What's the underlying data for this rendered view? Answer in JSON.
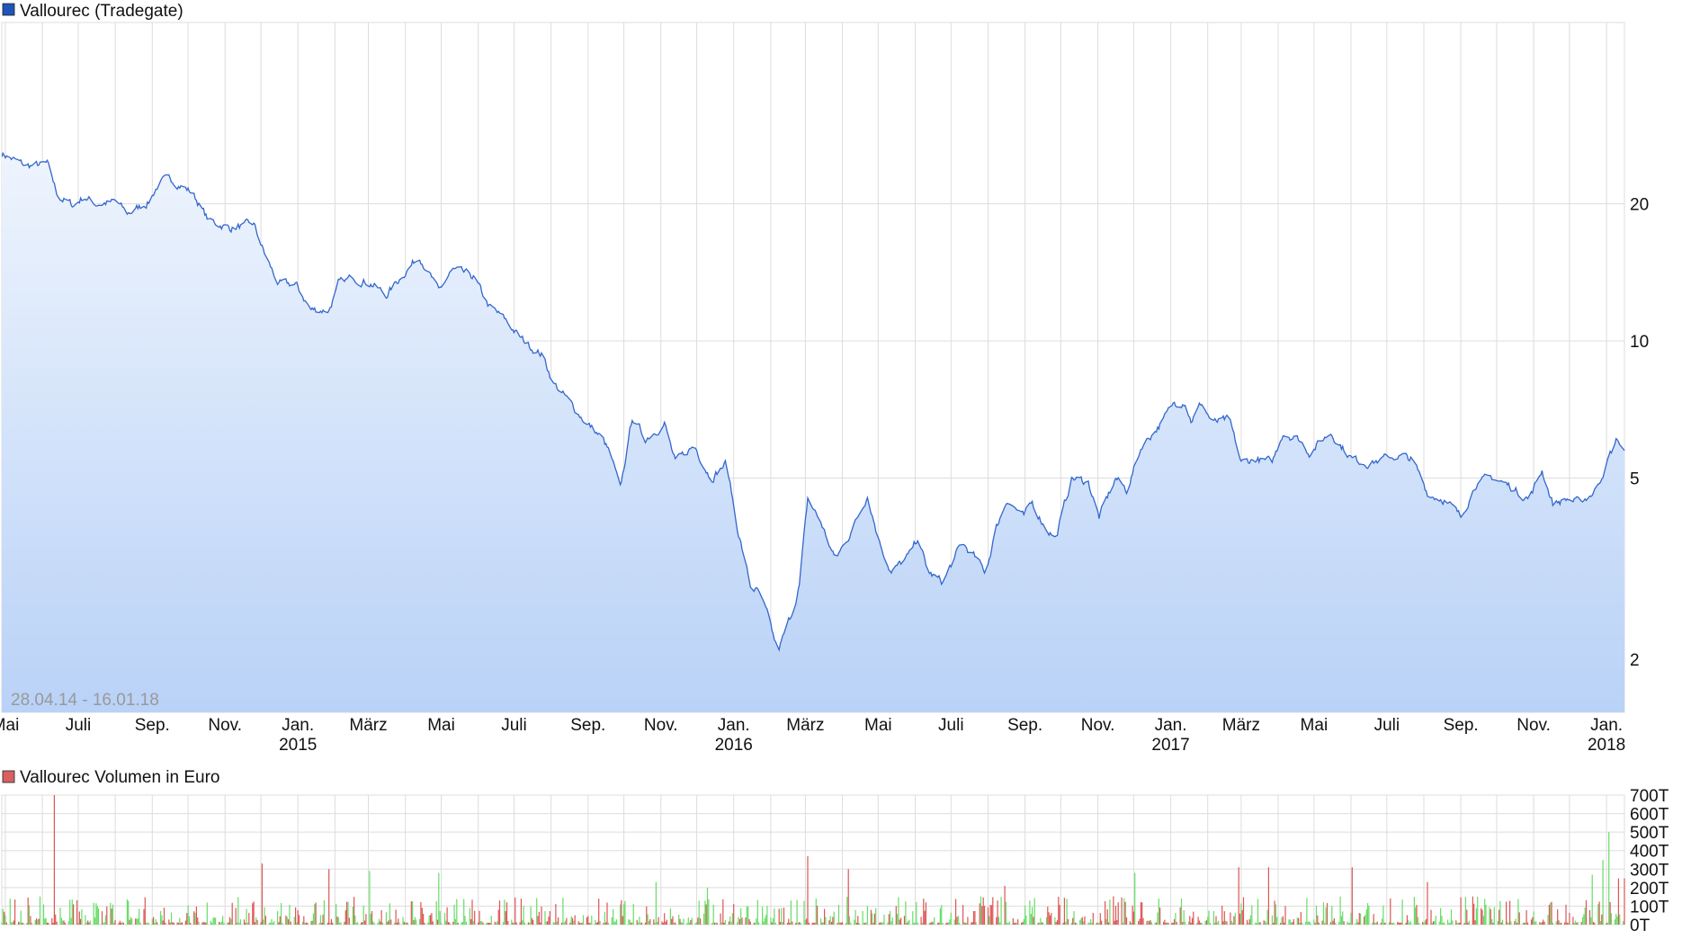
{
  "chart_data": [
    {
      "type": "area",
      "title": "Vallourec (Tradegate)",
      "legend_color": "#1f55b8",
      "line_color": "#3366cc",
      "fill_top_color": "#eef4fd",
      "fill_bottom_color": "#b9d2f7",
      "y_scale": "log",
      "ylim": [
        1.53,
        50
      ],
      "y_ticks": [
        2,
        5,
        10,
        20
      ],
      "y_tick_labels": [
        "2",
        "5",
        "10",
        "20"
      ],
      "grid": true,
      "date_range_label": "28.04.14 - 16.01.18",
      "x_range": [
        "2014-04-28",
        "2018-01-16"
      ],
      "x_ticks": [
        {
          "date": "2014-05-01",
          "label": "Mai",
          "year": ""
        },
        {
          "date": "2014-07-01",
          "label": "Juli",
          "year": ""
        },
        {
          "date": "2014-09-01",
          "label": "Sep.",
          "year": ""
        },
        {
          "date": "2014-11-01",
          "label": "Nov.",
          "year": ""
        },
        {
          "date": "2015-01-01",
          "label": "Jan.",
          "year": "2015"
        },
        {
          "date": "2015-03-01",
          "label": "März",
          "year": ""
        },
        {
          "date": "2015-05-01",
          "label": "Mai",
          "year": ""
        },
        {
          "date": "2015-07-01",
          "label": "Juli",
          "year": ""
        },
        {
          "date": "2015-09-01",
          "label": "Sep.",
          "year": ""
        },
        {
          "date": "2015-11-01",
          "label": "Nov.",
          "year": ""
        },
        {
          "date": "2016-01-01",
          "label": "Jan.",
          "year": "2016"
        },
        {
          "date": "2016-03-01",
          "label": "März",
          "year": ""
        },
        {
          "date": "2016-05-01",
          "label": "Mai",
          "year": ""
        },
        {
          "date": "2016-07-01",
          "label": "Juli",
          "year": ""
        },
        {
          "date": "2016-09-01",
          "label": "Sep.",
          "year": ""
        },
        {
          "date": "2016-11-01",
          "label": "Nov.",
          "year": ""
        },
        {
          "date": "2017-01-01",
          "label": "Jan.",
          "year": "2017"
        },
        {
          "date": "2017-03-01",
          "label": "März",
          "year": ""
        },
        {
          "date": "2017-05-01",
          "label": "Mai",
          "year": ""
        },
        {
          "date": "2017-07-01",
          "label": "Juli",
          "year": ""
        },
        {
          "date": "2017-09-01",
          "label": "Sep.",
          "year": ""
        },
        {
          "date": "2017-11-01",
          "label": "Nov.",
          "year": ""
        },
        {
          "date": "2018-01-01",
          "label": "Jan.",
          "year": "2018"
        }
      ],
      "points": [
        [
          "2014-04-28",
          25.8
        ],
        [
          "2014-05-18",
          24.2
        ],
        [
          "2014-06-05",
          24.4
        ],
        [
          "2014-06-14",
          20.8
        ],
        [
          "2014-06-27",
          19.8
        ],
        [
          "2014-07-06",
          20.8
        ],
        [
          "2014-07-15",
          20.0
        ],
        [
          "2014-08-02",
          20.2
        ],
        [
          "2014-08-11",
          19.0
        ],
        [
          "2014-08-29",
          20.2
        ],
        [
          "2014-09-07",
          22.3
        ],
        [
          "2014-09-18",
          22.6
        ],
        [
          "2014-10-05",
          21.1
        ],
        [
          "2014-10-18",
          18.4
        ],
        [
          "2014-11-05",
          17.7
        ],
        [
          "2014-11-25",
          18.0
        ],
        [
          "2014-12-05",
          15.3
        ],
        [
          "2014-12-16",
          13.3
        ],
        [
          "2014-12-30",
          13.3
        ],
        [
          "2015-01-12",
          11.7
        ],
        [
          "2015-01-27",
          11.7
        ],
        [
          "2015-02-04",
          13.3
        ],
        [
          "2015-02-17",
          13.8
        ],
        [
          "2015-03-03",
          13.4
        ],
        [
          "2015-03-16",
          12.6
        ],
        [
          "2015-03-30",
          14.0
        ],
        [
          "2015-04-13",
          15.4
        ],
        [
          "2015-04-29",
          12.8
        ],
        [
          "2015-05-10",
          14.3
        ],
        [
          "2015-05-28",
          13.8
        ],
        [
          "2015-06-10",
          11.9
        ],
        [
          "2015-06-24",
          11.1
        ],
        [
          "2015-07-07",
          10.1
        ],
        [
          "2015-07-25",
          9.3
        ],
        [
          "2015-08-03",
          8.1
        ],
        [
          "2015-08-17",
          7.3
        ],
        [
          "2015-08-31",
          6.6
        ],
        [
          "2015-09-13",
          6.1
        ],
        [
          "2015-09-20",
          5.6
        ],
        [
          "2015-09-28",
          4.7
        ],
        [
          "2015-10-08",
          6.8
        ],
        [
          "2015-10-19",
          6.1
        ],
        [
          "2015-11-04",
          6.6
        ],
        [
          "2015-11-13",
          5.4
        ],
        [
          "2015-11-29",
          5.9
        ],
        [
          "2015-12-13",
          5.0
        ],
        [
          "2015-12-26",
          5.4
        ],
        [
          "2016-01-04",
          3.9
        ],
        [
          "2016-01-15",
          2.9
        ],
        [
          "2016-01-22",
          2.8
        ],
        [
          "2016-01-29",
          2.5
        ],
        [
          "2016-02-07",
          2.07
        ],
        [
          "2016-02-18",
          2.5
        ],
        [
          "2016-02-25",
          2.9
        ],
        [
          "2016-03-03",
          4.5
        ],
        [
          "2016-03-14",
          4.0
        ],
        [
          "2016-03-26",
          3.3
        ],
        [
          "2016-04-08",
          3.8
        ],
        [
          "2016-04-22",
          4.6
        ],
        [
          "2016-05-01",
          3.7
        ],
        [
          "2016-05-12",
          3.1
        ],
        [
          "2016-05-28",
          3.4
        ],
        [
          "2016-06-03",
          3.7
        ],
        [
          "2016-06-12",
          3.1
        ],
        [
          "2016-06-24",
          2.95
        ],
        [
          "2016-07-10",
          3.6
        ],
        [
          "2016-07-19",
          3.4
        ],
        [
          "2016-07-30",
          3.1
        ],
        [
          "2016-08-08",
          3.9
        ],
        [
          "2016-08-17",
          4.5
        ],
        [
          "2016-08-31",
          4.1
        ],
        [
          "2016-09-07",
          4.4
        ],
        [
          "2016-09-18",
          3.9
        ],
        [
          "2016-09-27",
          3.7
        ],
        [
          "2016-10-10",
          5.0
        ],
        [
          "2016-10-24",
          4.9
        ],
        [
          "2016-11-02",
          4.1
        ],
        [
          "2016-11-16",
          5.0
        ],
        [
          "2016-11-25",
          4.7
        ],
        [
          "2016-12-08",
          5.9
        ],
        [
          "2016-12-24",
          6.6
        ],
        [
          "2017-01-04",
          7.3
        ],
        [
          "2017-01-13",
          7.4
        ],
        [
          "2017-01-18",
          6.7
        ],
        [
          "2017-01-27",
          7.3
        ],
        [
          "2017-02-05",
          6.6
        ],
        [
          "2017-02-19",
          6.7
        ],
        [
          "2017-03-01",
          5.4
        ],
        [
          "2017-03-13",
          5.5
        ],
        [
          "2017-03-27",
          5.4
        ],
        [
          "2017-04-05",
          6.3
        ],
        [
          "2017-04-18",
          6.1
        ],
        [
          "2017-04-27",
          5.7
        ],
        [
          "2017-05-15",
          6.3
        ],
        [
          "2017-06-02",
          5.5
        ],
        [
          "2017-06-16",
          5.4
        ],
        [
          "2017-07-09",
          5.6
        ],
        [
          "2017-07-22",
          5.5
        ],
        [
          "2017-08-05",
          4.6
        ],
        [
          "2017-08-18",
          4.5
        ],
        [
          "2017-09-01",
          4.1
        ],
        [
          "2017-09-14",
          4.9
        ],
        [
          "2017-09-28",
          5.0
        ],
        [
          "2017-10-12",
          4.8
        ],
        [
          "2017-10-28",
          4.5
        ],
        [
          "2017-11-08",
          5.2
        ],
        [
          "2017-11-17",
          4.4
        ],
        [
          "2017-11-30",
          4.5
        ],
        [
          "2017-12-09",
          4.4
        ],
        [
          "2017-12-23",
          4.7
        ],
        [
          "2018-01-01",
          5.4
        ],
        [
          "2018-01-10",
          6.1
        ],
        [
          "2018-01-16",
          5.7
        ]
      ]
    },
    {
      "type": "bar",
      "title": "Vallourec Volumen in Euro",
      "legend_color": "#d96060",
      "up_color": "#66dd66",
      "down_color": "#dd5555",
      "ylim": [
        0,
        700
      ],
      "y_unit": "T",
      "y_tick_labels": [
        "0T",
        "100T",
        "200T",
        "300T",
        "400T",
        "500T",
        "600T",
        "700T"
      ],
      "y_ticks": [
        0,
        100,
        200,
        300,
        400,
        500,
        600,
        700
      ],
      "grid": true,
      "typical_daily_volume_range": [
        10,
        120
      ],
      "notable_bars": [
        [
          "2014-06-11",
          700,
          "down"
        ],
        [
          "2014-12-02",
          330,
          "down"
        ],
        [
          "2015-01-27",
          300,
          "down"
        ],
        [
          "2015-03-02",
          290,
          "up"
        ],
        [
          "2015-04-29",
          280,
          "up"
        ],
        [
          "2015-10-28",
          230,
          "up"
        ],
        [
          "2015-12-10",
          200,
          "up"
        ],
        [
          "2016-03-03",
          370,
          "down"
        ],
        [
          "2016-04-06",
          300,
          "down"
        ],
        [
          "2016-08-15",
          210,
          "down"
        ],
        [
          "2016-12-02",
          280,
          "up"
        ],
        [
          "2017-02-27",
          310,
          "down"
        ],
        [
          "2017-03-24",
          310,
          "down"
        ],
        [
          "2017-06-02",
          310,
          "down"
        ],
        [
          "2017-08-04",
          230,
          "down"
        ],
        [
          "2017-12-20",
          270,
          "up"
        ],
        [
          "2017-12-29",
          350,
          "up"
        ],
        [
          "2018-01-03",
          500,
          "up"
        ],
        [
          "2018-01-11",
          250,
          "down"
        ],
        [
          "2018-01-16",
          250,
          "down"
        ]
      ]
    }
  ]
}
